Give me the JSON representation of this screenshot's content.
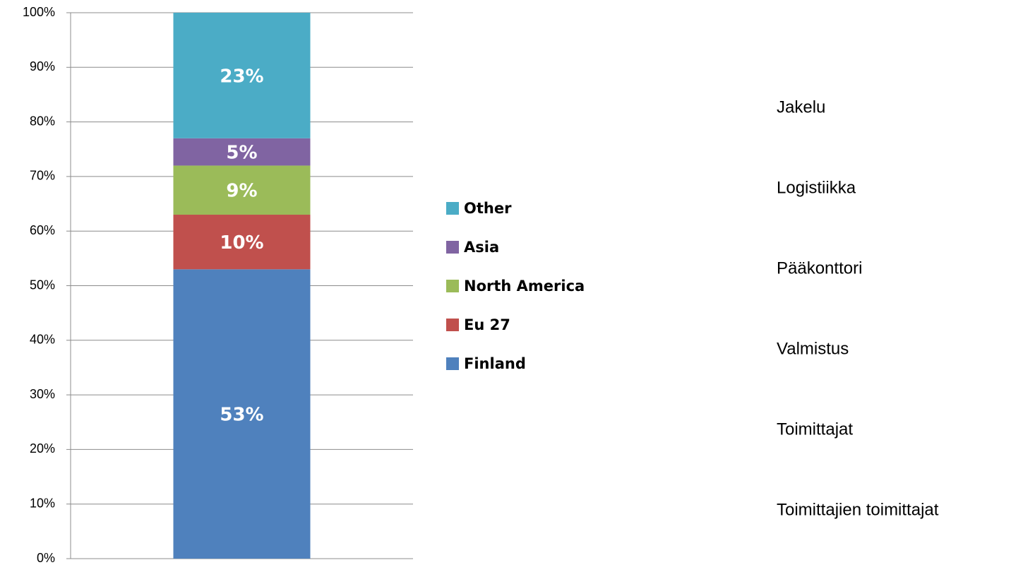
{
  "chart_data": {
    "type": "stacked-bar",
    "categories": [
      null
    ],
    "series": [
      {
        "name": "Finland",
        "color": "#4f81bd",
        "values": [
          53
        ],
        "value_labels": [
          "53%"
        ]
      },
      {
        "name": "Eu 27",
        "color": "#c0504d",
        "values": [
          10
        ],
        "value_labels": [
          "10%"
        ]
      },
      {
        "name": "North America",
        "color": "#9bbb59",
        "values": [
          9
        ],
        "value_labels": [
          "9%"
        ]
      },
      {
        "name": "Asia",
        "color": "#8064a2",
        "values": [
          5
        ],
        "value_labels": [
          "5%"
        ]
      },
      {
        "name": "Other",
        "color": "#4bacc6",
        "values": [
          23
        ],
        "value_labels": [
          "23%"
        ]
      }
    ],
    "ylim": [
      0,
      100
    ],
    "yticks": [
      {
        "value": 0,
        "label": "0%"
      },
      {
        "value": 10,
        "label": "10%"
      },
      {
        "value": 20,
        "label": "20%"
      },
      {
        "value": 30,
        "label": "30%"
      },
      {
        "value": 40,
        "label": "40%"
      },
      {
        "value": 50,
        "label": "50%"
      },
      {
        "value": 60,
        "label": "60%"
      },
      {
        "value": 70,
        "label": "70%"
      },
      {
        "value": 80,
        "label": "80%"
      },
      {
        "value": 90,
        "label": "90%"
      },
      {
        "value": 100,
        "label": "100%"
      }
    ],
    "grid": true,
    "legend": "right",
    "annotations": [
      "Jakelu",
      "Logistiikka",
      "Pääkonttori",
      "Valmistus",
      "Toimittajat",
      "Toimittajien toimittajat"
    ]
  }
}
